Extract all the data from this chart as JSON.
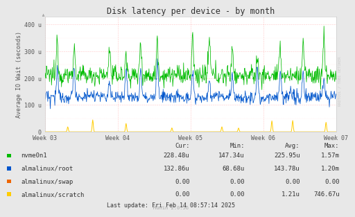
{
  "title": "Disk latency per device - by month",
  "ylabel": "Average IO Wait (seconds)",
  "fig_bg_color": "#E8E8E8",
  "plot_bg_color": "#FFFFFF",
  "grid_color": "#FF9999",
  "minor_grid_color": "#FFDDDD",
  "ytick_labels": [
    "0",
    "100 u",
    "200 u",
    "300 u",
    "400 u"
  ],
  "ytick_positions": [
    0,
    100,
    200,
    300,
    400
  ],
  "ylim": [
    0,
    430
  ],
  "xtick_labels": [
    "Week 03",
    "Week 04",
    "Week 05",
    "Week 06",
    "Week 07"
  ],
  "colors": {
    "nvme0n1": "#00BB00",
    "root": "#0055CC",
    "swap": "#EE6600",
    "scratch": "#FFCC00"
  },
  "legend_data": {
    "headers": [
      "Cur:",
      "Min:",
      "Avg:",
      "Max:"
    ],
    "rows": [
      [
        "nvme0n1",
        "228.48u",
        "147.34u",
        "225.95u",
        "1.57m"
      ],
      [
        "almalinux/root",
        "132.86u",
        "68.68u",
        "143.78u",
        "1.20m"
      ],
      [
        "almalinux/swap",
        "0.00",
        "0.00",
        "0.00",
        "0.00"
      ],
      [
        "almalinux/scratch",
        "0.00",
        "0.00",
        "1.21u",
        "746.67u"
      ]
    ]
  },
  "footer": "Last update: Fri Feb 14 08:57:14 2025",
  "watermark": "Munin 2.0.56",
  "rrdtool_label": "RRDTOOL / TOBI OETIKER"
}
